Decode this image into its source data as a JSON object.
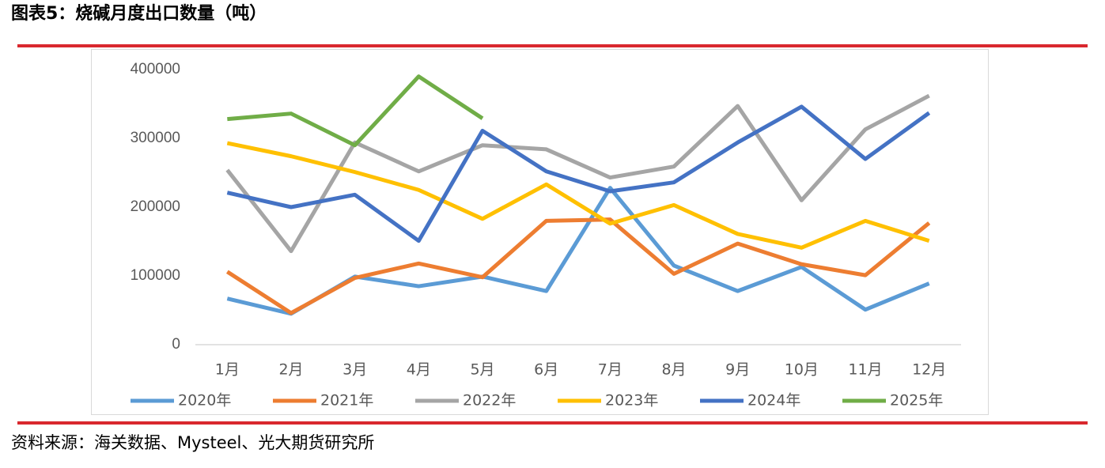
{
  "chart_data": {
    "type": "line",
    "title": "图表5：烧碱月度出口数量（吨）",
    "source": "资料来源：海关数据、Mysteel、光大期货研究所",
    "categories": [
      "1月",
      "2月",
      "3月",
      "4月",
      "5月",
      "6月",
      "7月",
      "8月",
      "9月",
      "10月",
      "11月",
      "12月"
    ],
    "ylim": [
      0,
      400000
    ],
    "yticks": [
      0,
      100000,
      200000,
      300000,
      400000
    ],
    "grid": false,
    "legend": "bottom",
    "series": [
      {
        "name": "2020年",
        "color": "#5b9bd5",
        "values": [
          67000,
          45000,
          99000,
          85000,
          99000,
          78000,
          228000,
          115000,
          78000,
          113000,
          51000,
          89000
        ]
      },
      {
        "name": "2021年",
        "color": "#ed7d31",
        "values": [
          106000,
          46000,
          97000,
          118000,
          98000,
          180000,
          182000,
          103000,
          147000,
          117000,
          101000,
          177000
        ]
      },
      {
        "name": "2022年",
        "color": "#a5a5a5",
        "values": [
          254000,
          136000,
          294000,
          252000,
          290000,
          284000,
          243000,
          259000,
          347000,
          210000,
          313000,
          362000
        ]
      },
      {
        "name": "2023年",
        "color": "#ffc000",
        "values": [
          293000,
          274000,
          251000,
          225000,
          183000,
          233000,
          176000,
          203000,
          161000,
          141000,
          180000,
          151000
        ]
      },
      {
        "name": "2024年",
        "color": "#4472c4",
        "values": [
          221000,
          200000,
          218000,
          151000,
          311000,
          252000,
          223000,
          236000,
          294000,
          346000,
          270000,
          337000
        ]
      },
      {
        "name": "2025年",
        "color": "#70ad47",
        "values": [
          328000,
          336000,
          290000,
          390000,
          329000,
          null,
          null,
          null,
          null,
          null,
          null,
          null
        ]
      }
    ]
  }
}
